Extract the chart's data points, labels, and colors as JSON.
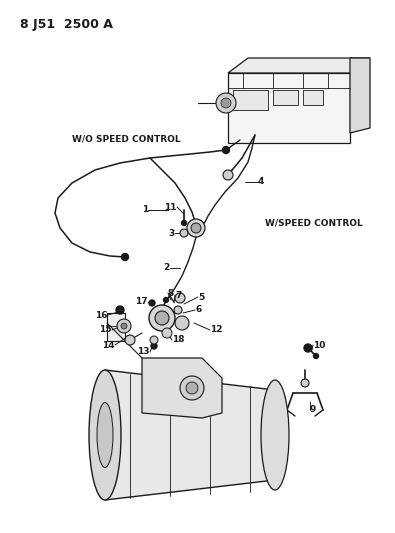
{
  "title": "8 J51  2500 A",
  "bg_color": "#ffffff",
  "line_color": "#1a1a1a",
  "text_color": "#1a1a1a",
  "label_wo_speed": "W/O SPEED CONTROL",
  "label_w_speed": "W/SPEED CONTROL",
  "fig_w": 3.95,
  "fig_h": 5.33,
  "dpi": 100
}
